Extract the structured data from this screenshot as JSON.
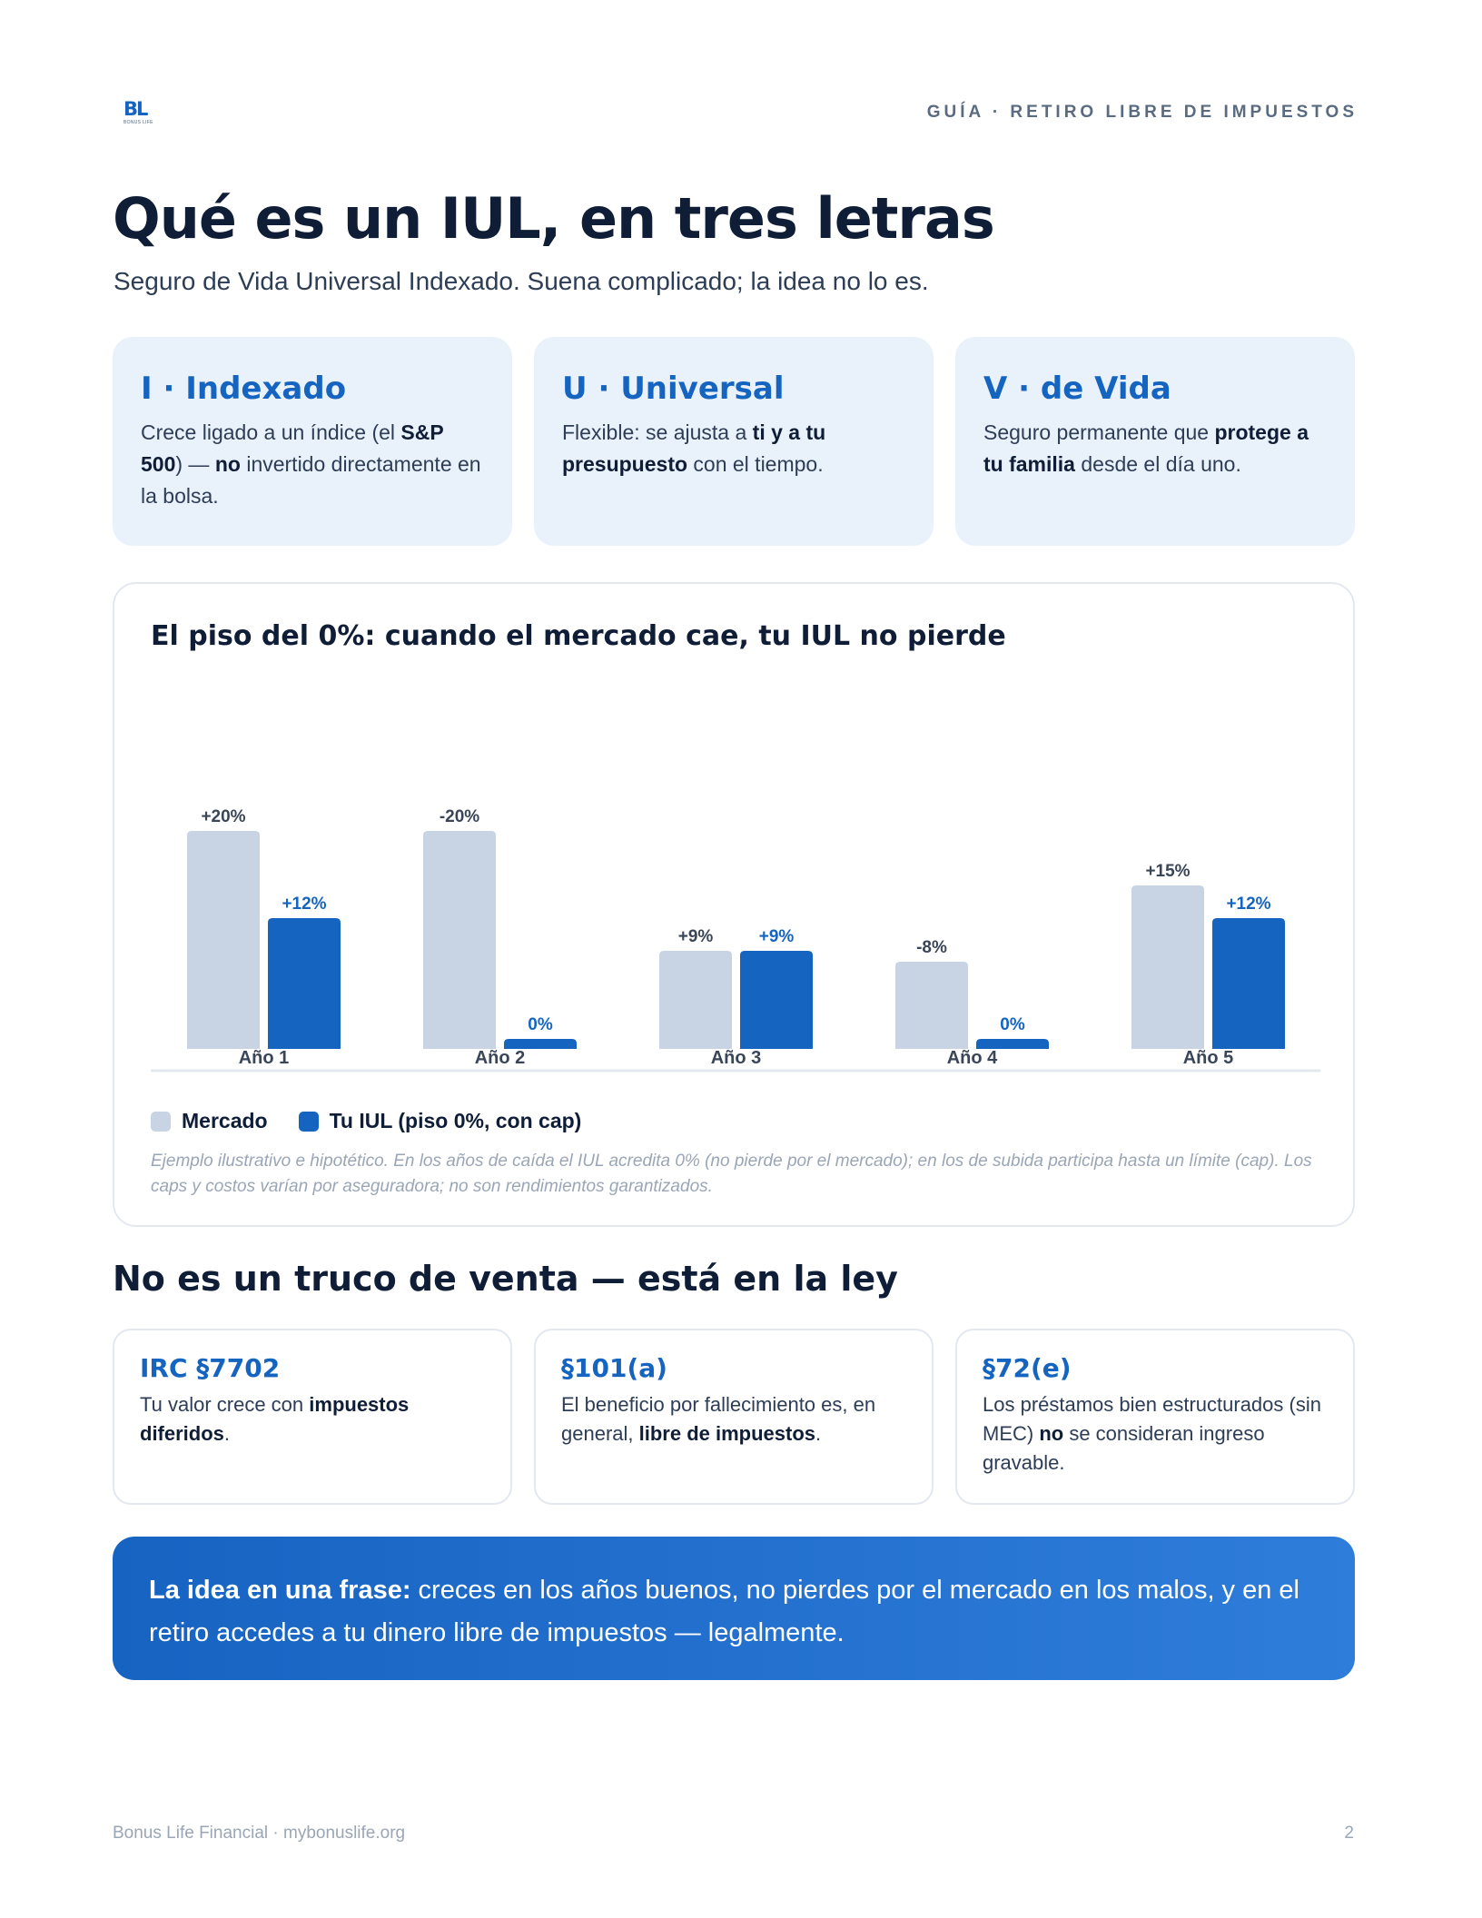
{
  "header": {
    "logo": {
      "mark": "BL",
      "sub": "BONUS LIFE"
    },
    "eyebrow": "GUÍA · RETIRO LIBRE DE IMPUESTOS"
  },
  "title": "Qué es un IUL, en tres letras",
  "subtitle": "Seguro de Vida Universal Indexado. Suena complicado; la idea no lo es.",
  "definitions": [
    {
      "title": "I · Indexado",
      "parts": [
        "Crece ligado a un índice (el ",
        "S&P 500",
        ") — ",
        "no",
        " invertido directamente en la bolsa."
      ]
    },
    {
      "title": "U · Universal",
      "parts": [
        "Flexible: se ajusta a ",
        "ti y a tu presupuesto",
        " con el tiempo."
      ]
    },
    {
      "title": "V · de Vida",
      "parts": [
        "Seguro permanente que ",
        "protege a tu familia",
        " desde el día uno."
      ]
    }
  ],
  "chart_data": {
    "type": "bar",
    "title": "El piso del 0%: cuando el mercado cae, tu IUL no pierde",
    "categories": [
      "Año 1",
      "Año 2",
      "Año 3",
      "Año 4",
      "Año 5"
    ],
    "series": [
      {
        "name": "Mercado",
        "values": [
          20,
          -20,
          9,
          -8,
          15
        ],
        "labels": [
          "+20%",
          "-20%",
          "+9%",
          "-8%",
          "+15%"
        ],
        "color": "#c8d3e3",
        "label_color": "#3a4657"
      },
      {
        "name": "Tu IUL (piso 0%, con cap)",
        "values": [
          12,
          0,
          9,
          0,
          12
        ],
        "labels": [
          "+12%",
          "0%",
          "+9%",
          "0%",
          "+12%"
        ],
        "color": "#1565c0",
        "label_color": "#1565c0"
      }
    ],
    "note": "Ejemplo ilustrativo e hipotético. En los años de caída el IUL acredita 0% (no pierde por el mercado); en los de subida participa hasta un límite (cap). Los caps y costos varían por aseguradora; no son rendimientos garantizados.",
    "grid": false,
    "legend": "bottom-left"
  },
  "law_section_title": "No es un truco de venta — está en la ley",
  "laws": [
    {
      "title": "IRC §7702",
      "parts": [
        "Tu valor crece con ",
        "impuestos diferidos",
        "."
      ]
    },
    {
      "title": "§101(a)",
      "parts": [
        "El beneficio por fallecimiento es, en general, ",
        "libre de impuestos",
        "."
      ]
    },
    {
      "title": "§72(e)",
      "parts": [
        "Los préstamos bien estructurados (sin MEC) ",
        "no",
        " se consideran ingreso gravable."
      ]
    }
  ],
  "callout": {
    "lead": "La idea en una frase:",
    "text": " creces en los años buenos, no pierdes por el mercado en los malos, y en el retiro accedes a tu dinero libre de impuestos — legalmente."
  },
  "footer": {
    "left": "Bonus Life Financial · mybonuslife.org",
    "page": "2"
  }
}
